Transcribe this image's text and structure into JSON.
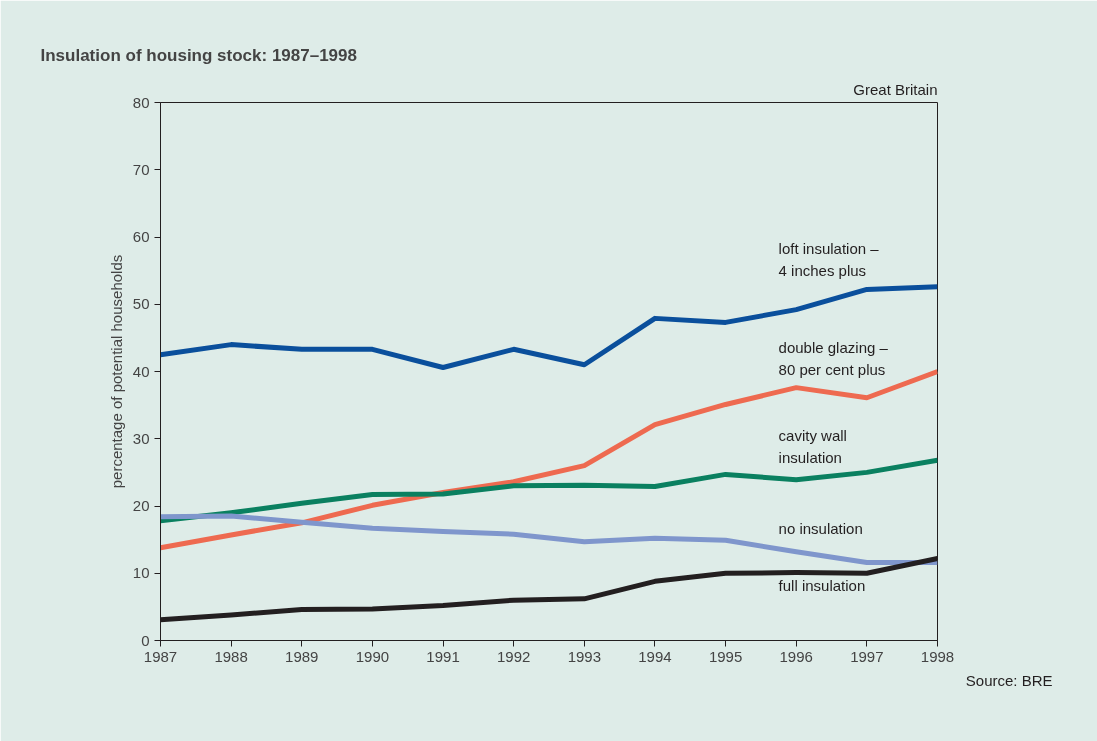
{
  "chart_data": {
    "type": "line",
    "title": "Insulation of housing stock: 1987–1998",
    "ylabel": "percentage of potential households",
    "x": [
      1987,
      1988,
      1989,
      1990,
      1991,
      1992,
      1993,
      1994,
      1995,
      1996,
      1997,
      1998
    ],
    "xlim": [
      1987,
      1998
    ],
    "xticks": [
      1987,
      1988,
      1989,
      1990,
      1991,
      1992,
      1993,
      1994,
      1995,
      1996,
      1997,
      1998
    ],
    "ylim": [
      0,
      80
    ],
    "yticks": [
      0,
      10,
      20,
      30,
      40,
      50,
      60,
      70,
      80
    ],
    "grid": false,
    "legend": false,
    "marker": "none",
    "line_style": "solid",
    "annotations": [
      "Great Britain",
      "Source: BRE"
    ],
    "series": [
      {
        "name": "loft insulation –\n4 inches plus",
        "color": "#0a4f9c",
        "values": [
          42.5,
          44.0,
          43.3,
          43.3,
          40.6,
          43.3,
          41.0,
          47.9,
          47.3,
          49.2,
          52.2,
          52.6
        ]
      },
      {
        "name": "double glazing –\n80 per cent plus",
        "color": "#ee6a50",
        "values": [
          13.8,
          15.7,
          17.5,
          20.1,
          22.0,
          23.6,
          26.0,
          32.1,
          35.1,
          37.6,
          36.1,
          40.0
        ]
      },
      {
        "name": "cavity wall\ninsulation",
        "color": "#0a8060",
        "values": [
          17.8,
          19.0,
          20.4,
          21.7,
          21.8,
          23.0,
          23.1,
          22.9,
          24.7,
          23.9,
          25.0,
          26.8
        ]
      },
      {
        "name": "no insulation",
        "color": "#7f96cc",
        "values": [
          18.4,
          18.5,
          17.6,
          16.7,
          16.2,
          15.8,
          14.7,
          15.2,
          14.9,
          13.2,
          11.6,
          11.6
        ]
      },
      {
        "name": "full insulation",
        "color": "#231f20",
        "values": [
          3.1,
          3.8,
          4.6,
          4.7,
          5.2,
          6.0,
          6.2,
          8.8,
          10.0,
          10.1,
          10.0,
          12.2
        ]
      }
    ]
  }
}
